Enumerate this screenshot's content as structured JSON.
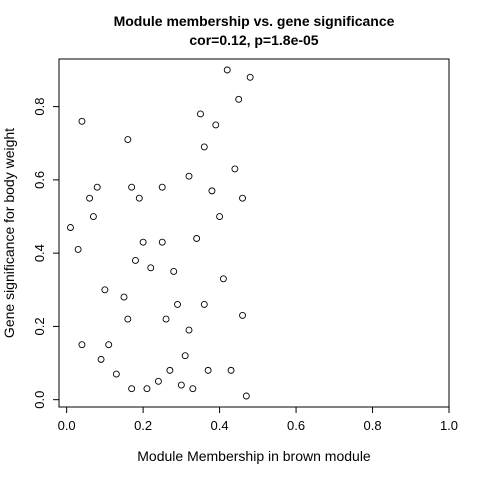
{
  "chart_data": {
    "type": "scatter",
    "title": "Module membership vs. gene significance",
    "subtitle": "cor=0.12, p=1.8e-05",
    "xlabel": "Module Membership in brown module",
    "ylabel": "Gene significance for body weight",
    "xlim": [
      -0.02,
      1.0
    ],
    "ylim": [
      -0.02,
      0.93
    ],
    "xticks": [
      0.0,
      0.2,
      0.4,
      0.6,
      0.8,
      1.0
    ],
    "xtick_labels": [
      "0.0",
      "0.2",
      "0.4",
      "0.6",
      "0.8",
      "1.0"
    ],
    "yticks": [
      0.0,
      0.2,
      0.4,
      0.6,
      0.8
    ],
    "ytick_labels": [
      "0.0",
      "0.2",
      "0.4",
      "0.6",
      "0.8"
    ],
    "grid": false,
    "marker": "open-circle",
    "series": [
      {
        "name": "brown module genes",
        "points": [
          [
            0.01,
            0.47
          ],
          [
            0.03,
            0.41
          ],
          [
            0.04,
            0.76
          ],
          [
            0.04,
            0.15
          ],
          [
            0.06,
            0.55
          ],
          [
            0.07,
            0.5
          ],
          [
            0.08,
            0.58
          ],
          [
            0.09,
            0.11
          ],
          [
            0.1,
            0.3
          ],
          [
            0.11,
            0.15
          ],
          [
            0.13,
            0.07
          ],
          [
            0.15,
            0.28
          ],
          [
            0.16,
            0.71
          ],
          [
            0.16,
            0.22
          ],
          [
            0.17,
            0.58
          ],
          [
            0.17,
            0.03
          ],
          [
            0.18,
            0.38
          ],
          [
            0.19,
            0.55
          ],
          [
            0.2,
            0.43
          ],
          [
            0.21,
            0.03
          ],
          [
            0.22,
            0.36
          ],
          [
            0.24,
            0.05
          ],
          [
            0.25,
            0.43
          ],
          [
            0.25,
            0.58
          ],
          [
            0.26,
            0.22
          ],
          [
            0.27,
            0.08
          ],
          [
            0.28,
            0.35
          ],
          [
            0.29,
            0.26
          ],
          [
            0.3,
            0.04
          ],
          [
            0.31,
            0.12
          ],
          [
            0.32,
            0.61
          ],
          [
            0.32,
            0.19
          ],
          [
            0.33,
            0.03
          ],
          [
            0.34,
            0.44
          ],
          [
            0.35,
            0.78
          ],
          [
            0.36,
            0.69
          ],
          [
            0.36,
            0.26
          ],
          [
            0.37,
            0.08
          ],
          [
            0.38,
            0.57
          ],
          [
            0.39,
            0.75
          ],
          [
            0.4,
            0.5
          ],
          [
            0.41,
            0.33
          ],
          [
            0.42,
            0.9
          ],
          [
            0.43,
            0.08
          ],
          [
            0.44,
            0.63
          ],
          [
            0.45,
            0.82
          ],
          [
            0.46,
            0.55
          ],
          [
            0.46,
            0.23
          ],
          [
            0.47,
            0.01
          ],
          [
            0.48,
            0.88
          ]
        ]
      }
    ]
  }
}
